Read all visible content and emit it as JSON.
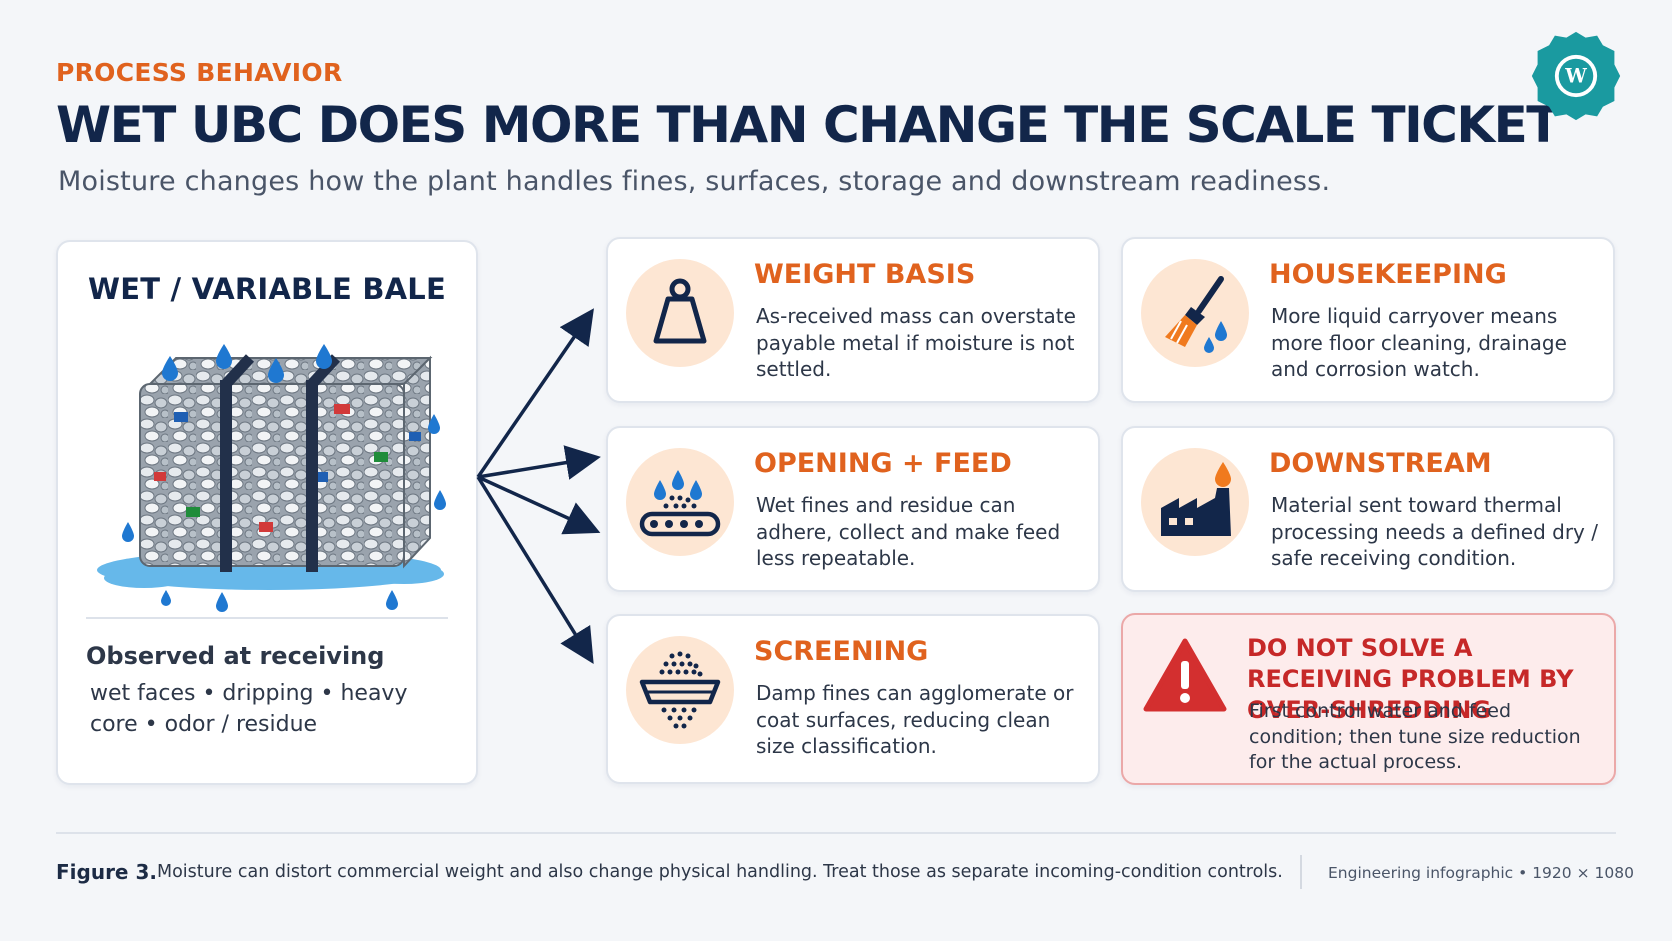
{
  "header": {
    "eyebrow": "PROCESS BEHAVIOR",
    "title": "WET UBC DOES MORE THAN CHANGE THE SCALE TICKET",
    "subtitle": "Moisture changes how the plant handles fines, surfaces, storage and downstream readiness."
  },
  "logo": {
    "icon": "gear-w-logo",
    "color": "#1a9aa0"
  },
  "bale": {
    "title": "WET / VARIABLE BALE",
    "observed_title": "Observed at receiving",
    "observed_text": "wet faces • dripping • heavy core • odor / residue"
  },
  "cards": [
    {
      "icon": "weight-icon",
      "title": "WEIGHT BASIS",
      "text": "As-received mass can overstate payable metal if moisture is not settled."
    },
    {
      "icon": "broom-icon",
      "title": "HOUSEKEEPING",
      "text": "More liquid carryover means more floor cleaning, drainage and corrosion watch."
    },
    {
      "icon": "conveyor-icon",
      "title": "OPENING + FEED",
      "text": "Wet fines and residue can adhere, collect and make feed less repeatable."
    },
    {
      "icon": "factory-icon",
      "title": "DOWNSTREAM",
      "text": "Material sent toward thermal processing needs a defined dry / safe receiving condition."
    },
    {
      "icon": "screen-icon",
      "title": "SCREENING",
      "text": "Damp fines can agglomerate or coat surfaces, reducing clean size classification."
    }
  ],
  "warning": {
    "icon": "warning-icon",
    "title": "DO NOT SOLVE A RECEIVING PROBLEM BY OVER-SHREDDING",
    "text": "First control water and feed condition; then tune size reduction for the actual process."
  },
  "footer": {
    "figure_label": "Figure 3.",
    "caption": "Moisture can distort commercial weight and also change physical handling. Treat those as separate incoming-condition controls.",
    "meta": "Engineering infographic • 1920 × 1080"
  },
  "colors": {
    "accent": "#e0621e",
    "navy": "#12264a",
    "water": "#1f78d1",
    "warning": "#c62828",
    "icon_bg": "#fde6d3"
  }
}
